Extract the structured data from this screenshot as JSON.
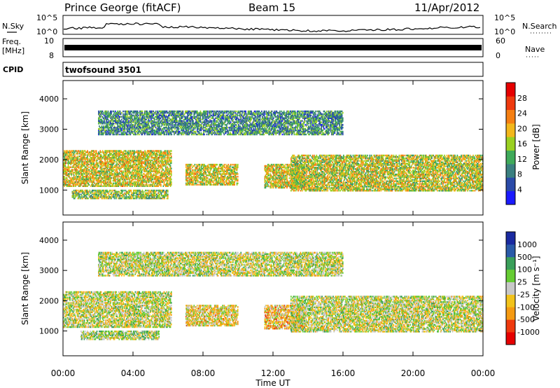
{
  "header": {
    "station": "Prince George (fitACF)",
    "beam": "Beam 15",
    "date": "11/Apr/2012"
  },
  "nsky_panel": {
    "left_label": "N.Sky",
    "right_label": "N.Search",
    "tick_top": "10^5",
    "tick_bottom": "10^0",
    "right_tick_top": "10^5",
    "right_tick_bottom": "10^0"
  },
  "freq_panel": {
    "left_label_top": "Freq.",
    "left_label_unit": "[MHz]",
    "tick_top": "10",
    "tick_bottom": "8",
    "right_label": "Nave",
    "right_tick_top": "60",
    "right_tick_bottom": "0"
  },
  "cpid_panel": {
    "label": "CPID",
    "value": "twofsound 3501"
  },
  "time_axis": {
    "title": "Time UT",
    "ticks": [
      "00:00",
      "04:00",
      "08:00",
      "12:00",
      "16:00",
      "20:00",
      "00:00"
    ]
  },
  "colors": {
    "power": [
      "#1a1aff",
      "#2a4aa8",
      "#3a7f7f",
      "#3faa5a",
      "#9ad021",
      "#f2b71b",
      "#f57f12",
      "#ef3a0e",
      "#e60000"
    ],
    "velocity": [
      "#e60000",
      "#ef3a0e",
      "#f59a12",
      "#f2c31b",
      "#c8c8c8",
      "#66cc33",
      "#3a9f5a",
      "#2a5aa8",
      "#1a2aa0"
    ]
  },
  "chart_data": [
    {
      "type": "heatmap",
      "ylabel": "Slant Range [km]",
      "ylim": [
        180,
        4600
      ],
      "xlim": [
        0,
        24
      ],
      "yticks": [
        "1000",
        "2000",
        "3000",
        "4000"
      ],
      "colorbar": {
        "label": "Power [dB]",
        "ticks": [
          "4",
          "8",
          "12",
          "16",
          "20",
          "24",
          "28"
        ],
        "range": [
          0,
          32
        ]
      },
      "bands": [
        {
          "t0": 0.0,
          "t1": 6.2,
          "r0": 1100,
          "r1": 2300,
          "mean": 18
        },
        {
          "t0": 0.5,
          "t1": 6.0,
          "r0": 700,
          "r1": 1000,
          "mean": 15
        },
        {
          "t0": 7.0,
          "t1": 10.0,
          "r0": 1150,
          "r1": 1850,
          "mean": 18
        },
        {
          "t0": 11.5,
          "t1": 13.8,
          "r0": 1050,
          "r1": 1850,
          "mean": 18
        },
        {
          "t0": 13.0,
          "t1": 24.0,
          "r0": 950,
          "r1": 2150,
          "mean": 17
        },
        {
          "t0": 2.0,
          "t1": 16.0,
          "r0": 2800,
          "r1": 3600,
          "mean": 10
        }
      ]
    },
    {
      "type": "heatmap",
      "ylabel": "Slant Range [km]",
      "ylim": [
        180,
        4600
      ],
      "xlim": [
        0,
        24
      ],
      "yticks": [
        "1000",
        "2000",
        "3000",
        "4000"
      ],
      "colorbar": {
        "label": "Velocity [m s⁻¹]",
        "ticks": [
          "1000",
          "500",
          "100",
          "25",
          "-25",
          "-100",
          "-500",
          "-1000"
        ],
        "range": [
          -1000,
          1000
        ]
      },
      "bands": [
        {
          "t0": 0.0,
          "t1": 6.2,
          "r0": 1100,
          "r1": 2300,
          "mean": 0
        },
        {
          "t0": 1.0,
          "t1": 5.5,
          "r0": 700,
          "r1": 1000,
          "mean": 80
        },
        {
          "t0": 7.0,
          "t1": 10.0,
          "r0": 1150,
          "r1": 1850,
          "mean": -150
        },
        {
          "t0": 11.5,
          "t1": 13.8,
          "r0": 1050,
          "r1": 1850,
          "mean": -250
        },
        {
          "t0": 13.0,
          "t1": 24.0,
          "r0": 950,
          "r1": 2150,
          "mean": 0
        },
        {
          "t0": 2.0,
          "t1": 16.0,
          "r0": 2800,
          "r1": 3600,
          "mean": 0
        }
      ]
    }
  ]
}
